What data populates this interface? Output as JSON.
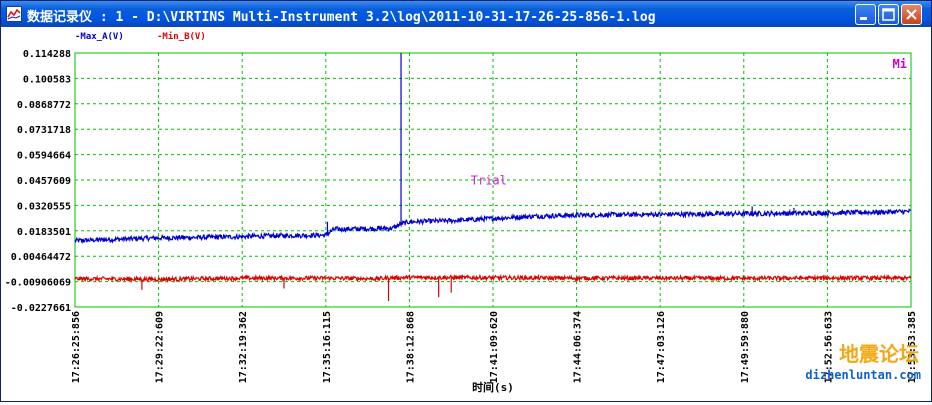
{
  "window": {
    "title": "数据记录仪 : 1 - D:\\VIRTINS Multi-Instrument 3.2\\log\\2011-10-31-17-26-25-856-1.log",
    "buttons": [
      "minimize",
      "maximize",
      "close"
    ]
  },
  "watermark": {
    "brand_cn": "地震论坛",
    "brand_url": "dizhenluntan.com"
  },
  "chart_data": {
    "type": "line",
    "legend": [
      "-Max_A(V)",
      "-Min_B(V)"
    ],
    "legend_colors": [
      "#0000cc",
      "#e00000"
    ],
    "corner_label": "Mi",
    "annotation": "Trial",
    "xlabel": "时间(s)",
    "x_ticks": [
      "17:26:25:856",
      "17:29:22:609",
      "17:32:19:362",
      "17:35:16:115",
      "17:38:12:868",
      "17:41:09:620",
      "17:44:06:374",
      "17:47:03:126",
      "17:49:59:880",
      "17:52:56:633",
      "17:53:53:385"
    ],
    "y_ticks": [
      "0.114288",
      "0.100583",
      "0.0868772",
      "0.0731718",
      "0.0594664",
      "0.0457609",
      "0.0320555",
      "0.0183501",
      "0.00464472",
      "-0.00906069",
      "-0.0227661"
    ],
    "ylim": [
      -0.0227661,
      0.114288
    ],
    "grid": true,
    "series": [
      {
        "name": "-Max_A(V)",
        "color": "#0000cc",
        "x": [
          0,
          5,
          10,
          15,
          20,
          25,
          30,
          31,
          35,
          38,
          39,
          40,
          45,
          50,
          55,
          60,
          65,
          70,
          75,
          80,
          85,
          90,
          95,
          100
        ],
        "y": [
          0.013,
          0.0138,
          0.0145,
          0.0148,
          0.0152,
          0.0158,
          0.016,
          0.0192,
          0.0195,
          0.0198,
          0.022,
          0.0232,
          0.0238,
          0.025,
          0.0262,
          0.0268,
          0.027,
          0.0272,
          0.0274,
          0.0276,
          0.0278,
          0.028,
          0.0283,
          0.0288
        ]
      },
      {
        "name": "-Min_B(V)",
        "color": "#e00000",
        "x": [
          0,
          10,
          20,
          30,
          36,
          38,
          40,
          50,
          60,
          70,
          80,
          90,
          100
        ],
        "y": [
          -0.0075,
          -0.0078,
          -0.0072,
          -0.0072,
          -0.0075,
          -0.007,
          -0.0068,
          -0.007,
          -0.0072,
          -0.0072,
          -0.0073,
          -0.0071,
          -0.0072
        ]
      }
    ],
    "spikes": [
      {
        "series": "-Max_A(V)",
        "x": 39,
        "y": 0.114288
      },
      {
        "series": "-Max_A(V)",
        "x": 30.2,
        "y": 0.0232
      },
      {
        "series": "-Max_A(V)",
        "x": 81,
        "y": 0.0315
      },
      {
        "series": "-Max_A(V)",
        "x": 86,
        "y": 0.0307
      },
      {
        "series": "-Min_B(V)",
        "x": 37.5,
        "y": -0.0195
      },
      {
        "series": "-Min_B(V)",
        "x": 43.5,
        "y": -0.0175
      },
      {
        "series": "-Min_B(V)",
        "x": 45,
        "y": -0.015
      },
      {
        "series": "-Min_B(V)",
        "x": 8,
        "y": -0.0135
      },
      {
        "series": "-Min_B(V)",
        "x": 25,
        "y": -0.0128
      }
    ]
  }
}
